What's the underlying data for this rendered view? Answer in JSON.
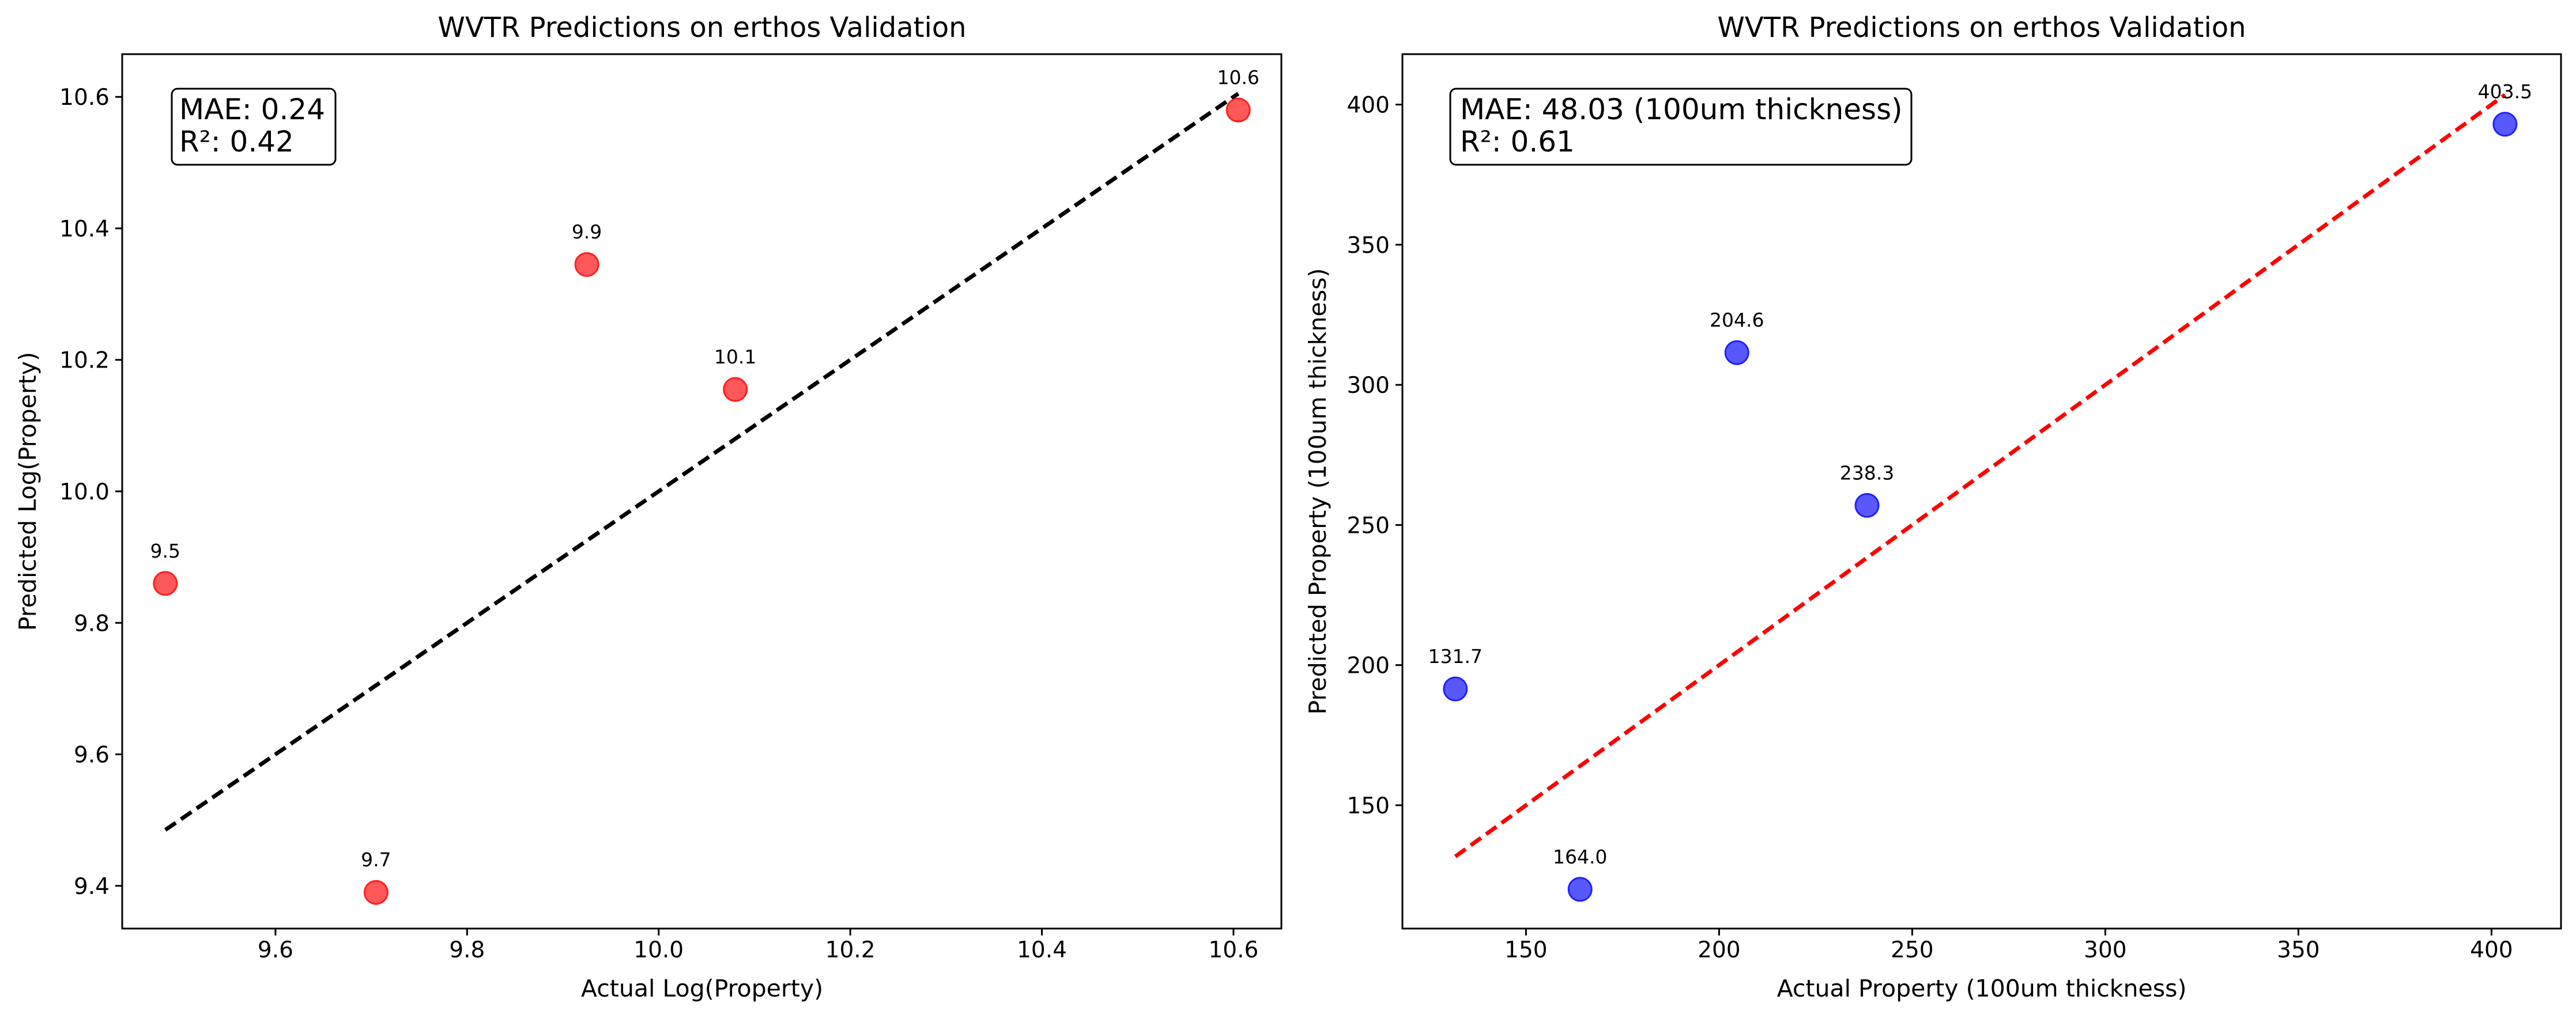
{
  "chart_data": [
    {
      "type": "scatter",
      "title": "WVTR Predictions on erthos Validation",
      "xlabel": "Actual Log(Property)",
      "ylabel": "Predicted Log(Property)",
      "xlim": [
        9.44,
        10.65
      ],
      "ylim": [
        9.335,
        10.665
      ],
      "xticks": [
        "9.6",
        "9.8",
        "10.0",
        "10.2",
        "10.4",
        "10.6"
      ],
      "yticks": [
        "9.4",
        "9.6",
        "9.8",
        "10.0",
        "10.2",
        "10.4",
        "10.6"
      ],
      "grid": false,
      "point_color": "#ff2020",
      "line_color": "#000000",
      "reference_line": {
        "x": [
          9.485,
          10.605
        ],
        "y": [
          9.485,
          10.605
        ]
      },
      "points": [
        {
          "x": 9.485,
          "y": 9.86,
          "label": "9.5"
        },
        {
          "x": 9.705,
          "y": 9.39,
          "label": "9.7"
        },
        {
          "x": 9.925,
          "y": 10.345,
          "label": "9.9"
        },
        {
          "x": 10.08,
          "y": 10.155,
          "label": "10.1"
        },
        {
          "x": 10.605,
          "y": 10.58,
          "label": "10.6"
        }
      ],
      "stats": [
        "MAE: 0.24",
        "R²: 0.42"
      ]
    },
    {
      "type": "scatter",
      "title": "WVTR Predictions on erthos Validation",
      "xlabel": "Actual Property (100um thickness)",
      "ylabel": "Predicted Property (100um thickness)",
      "xlim": [
        118.0,
        418.0
      ],
      "ylim": [
        106.0,
        418.0
      ],
      "xticks": [
        "150",
        "200",
        "250",
        "300",
        "350",
        "400"
      ],
      "yticks": [
        "150",
        "200",
        "250",
        "300",
        "350",
        "400"
      ],
      "grid": false,
      "point_color": "#2020ff",
      "line_color": "#ff0000",
      "reference_line": {
        "x": [
          131.7,
          403.5
        ],
        "y": [
          131.7,
          403.5
        ]
      },
      "points": [
        {
          "x": 131.7,
          "y": 191.5,
          "label": "131.7"
        },
        {
          "x": 164.0,
          "y": 120.0,
          "label": "164.0"
        },
        {
          "x": 204.6,
          "y": 311.5,
          "label": "204.6"
        },
        {
          "x": 238.3,
          "y": 257.0,
          "label": "238.3"
        },
        {
          "x": 403.5,
          "y": 393.0,
          "label": "403.5"
        }
      ],
      "stats": [
        "MAE: 48.03 (100um thickness)",
        "R²: 0.61"
      ]
    }
  ]
}
